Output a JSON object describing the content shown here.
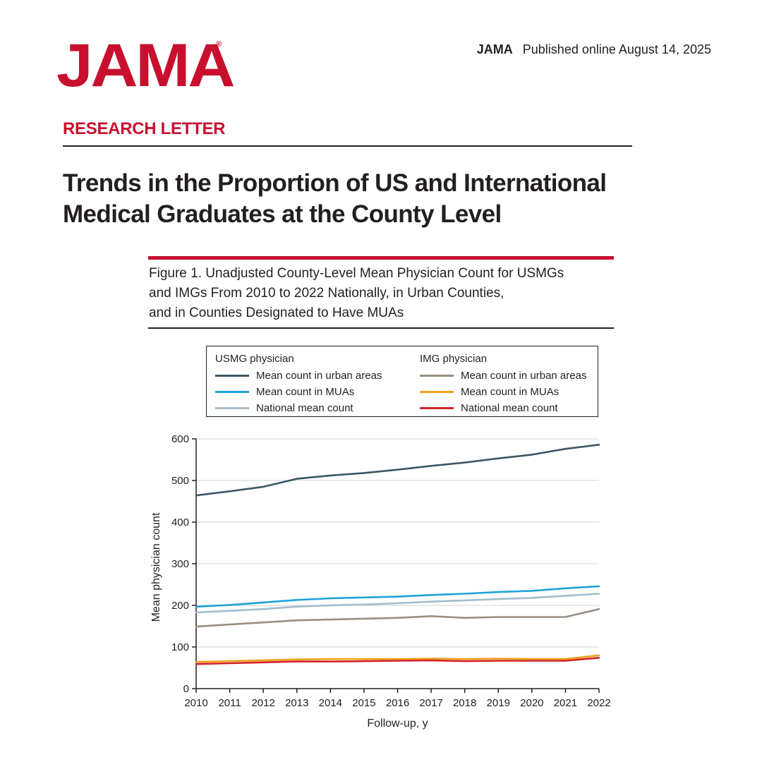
{
  "header": {
    "logo": "JAMA",
    "logo_mark": "®",
    "journal": "JAMA",
    "published": "Published online August  14, 2025"
  },
  "article": {
    "section": "RESEARCH LETTER",
    "title_line1": "Trends in the Proportion of US and International",
    "title_line2": "Medical Graduates at the County Level"
  },
  "figure": {
    "caption_line1": "Figure 1. Unadjusted County-Level Mean Physician Count for USMGs",
    "caption_line2": "and IMGs From 2010 to 2022 Nationally, in Urban Counties,",
    "caption_line3": "and in Counties Designated to Have MUAs"
  },
  "legend": {
    "usmg_heading": "USMG physician",
    "img_heading": "IMG physician",
    "usmg_items": [
      {
        "label": "Mean count in urban areas",
        "color": "#3b5766"
      },
      {
        "label": "Mean count in MUAs",
        "color": "#1ea2d8"
      },
      {
        "label": "National mean count",
        "color": "#a3bccb"
      }
    ],
    "img_items": [
      {
        "label": "Mean count in urban areas",
        "color": "#9a8f7f"
      },
      {
        "label": "Mean count in MUAs",
        "color": "#f0a11c"
      },
      {
        "label": "National mean count",
        "color": "#d2232a"
      }
    ]
  },
  "colors": {
    "brand_red": "#c8102e",
    "text": "#231f20",
    "gridline": "#dcdcdc"
  },
  "chart_data": {
    "type": "line",
    "title": "Unadjusted County-Level Mean Physician Count for USMGs and IMGs From 2010 to 2022 Nationally, in Urban Counties, and in Counties Designated to Have MUAs",
    "xlabel": "Follow-up, y",
    "ylabel": "Mean physician count",
    "x": [
      2010,
      2011,
      2012,
      2013,
      2014,
      2015,
      2016,
      2017,
      2018,
      2019,
      2020,
      2021,
      2022
    ],
    "ylim": [
      0,
      600
    ],
    "yticks": [
      0,
      100,
      200,
      300,
      400,
      500,
      600
    ],
    "grid": "horizontal",
    "series": [
      {
        "name": "USMG physician - Mean count in urban areas",
        "color": "#3b5766",
        "values": [
          464,
          474,
          485,
          504,
          512,
          518,
          526,
          535,
          543,
          553,
          562,
          576,
          586
        ]
      },
      {
        "name": "USMG physician - Mean count in MUAs",
        "color": "#1ea2d8",
        "values": [
          197,
          201,
          207,
          213,
          217,
          219,
          221,
          225,
          228,
          232,
          235,
          241,
          246
        ]
      },
      {
        "name": "USMG physician - National mean count",
        "color": "#a3bccb",
        "values": [
          183,
          187,
          191,
          197,
          200,
          202,
          205,
          209,
          212,
          215,
          218,
          223,
          228
        ]
      },
      {
        "name": "IMG physician - Mean count in urban areas",
        "color": "#9a8f7f",
        "values": [
          149,
          154,
          159,
          164,
          166,
          168,
          170,
          174,
          170,
          172,
          172,
          172,
          191
        ]
      },
      {
        "name": "IMG physician - Mean count in MUAs",
        "color": "#f0a11c",
        "values": [
          64,
          66,
          68,
          70,
          71,
          71,
          71,
          72,
          71,
          72,
          71,
          71,
          80
        ]
      },
      {
        "name": "IMG physician - National mean count",
        "color": "#d2232a",
        "values": [
          59,
          61,
          63,
          65,
          65,
          66,
          67,
          68,
          66,
          67,
          67,
          67,
          74
        ]
      }
    ]
  }
}
